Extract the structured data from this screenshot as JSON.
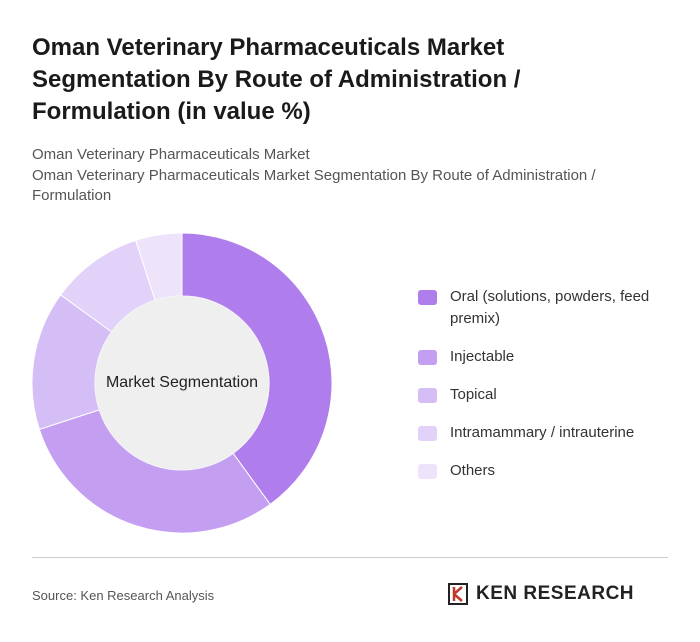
{
  "chart_data": {
    "type": "donut",
    "title": "Oman Veterinary Pharmaceuticals Market Segmentation By Route of Administration / Formulation (in value %)",
    "subtitle": "Oman Veterinary Pharmaceuticals Market",
    "subtitle2": "Oman Veterinary Pharmaceuticals Market Segmentation By Route of Administration / Formulation",
    "center_label": "Market Segmentation",
    "categories": [
      "Oral (solutions, powders, feed premix)",
      "Injectable",
      "Topical",
      "Intramammary / intrauterine",
      "Others"
    ],
    "values": [
      40,
      30,
      15,
      10,
      5
    ],
    "colors": [
      "#b07eec",
      "#c39ef1",
      "#d5bdf5",
      "#e2d1f8",
      "#ede3fa"
    ],
    "source": "Source: Ken Research Analysis",
    "logo": "KEN RESEARCH"
  }
}
